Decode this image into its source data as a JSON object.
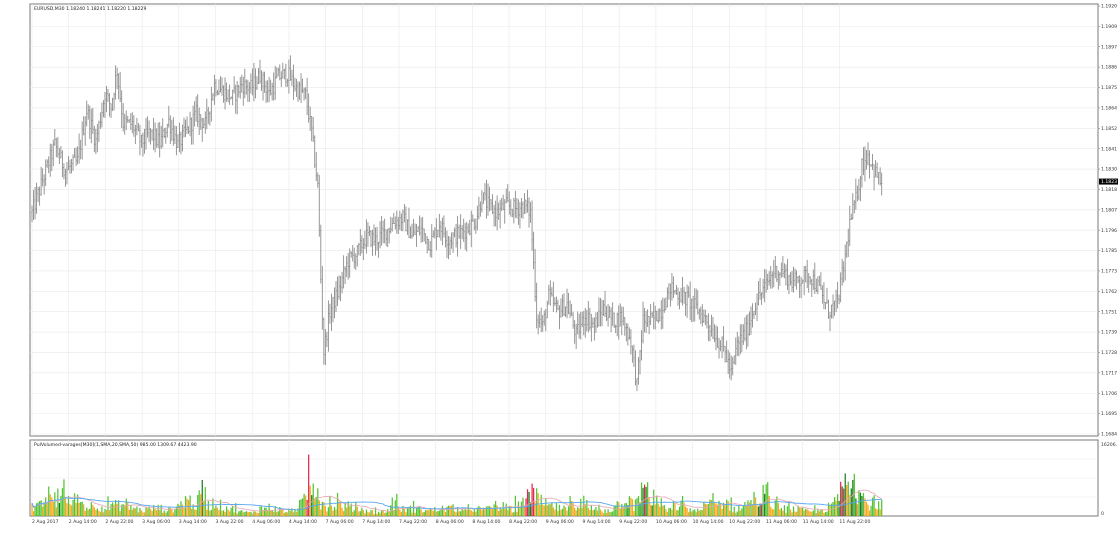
{
  "main_chart": {
    "header": "EURUSD,M30  1.18240 1.18241 1.18220 1.18229",
    "current_price": "1.1823",
    "price_labels": [
      "1.1920",
      "1.1909",
      "1.1897",
      "1.1886",
      "1.1875",
      "1.1864",
      "1.1852",
      "1.1841",
      "1.1830",
      "1.1818",
      "1.1807",
      "1.1796",
      "1.1785",
      "1.1773",
      "1.1762",
      "1.1751",
      "1.1739",
      "1.1728",
      "1.1717",
      "1.1706",
      "1.1695",
      "1.1684"
    ]
  },
  "volume_panel": {
    "header": "PulVolumed-varages[M30](1,SMA,20,SMA,50) 985.00 1309.67 4423.90",
    "scale_max": "16206.",
    "scale_min": "0"
  },
  "time_axis": {
    "labels": [
      "2 Aug 2017",
      "2 Aug 14:00",
      "2 Aug 22:00",
      "3 Aug 06:00",
      "3 Aug 14:00",
      "3 Aug 22:00",
      "4 Aug 06:00",
      "4 Aug 14:00",
      "7 Aug 06:00",
      "7 Aug 14:00",
      "7 Aug 22:00",
      "8 Aug 06:00",
      "8 Aug 14:00",
      "8 Aug 22:00",
      "9 Aug 06:00",
      "9 Aug 14:00",
      "9 Aug 22:00",
      "10 Aug 06:00",
      "10 Aug 14:00",
      "10 Aug 22:00",
      "11 Aug 06:00",
      "11 Aug 14:00",
      "11 Aug 22:00"
    ]
  },
  "colors": {
    "bars": "#8c8c8c",
    "grid": "#e9e9e9",
    "border": "#7a7a7a",
    "volume_bull": "#54c434",
    "volume_bull_dark": "#1e7e1e",
    "volume_bear": "#e02a52",
    "volume_neutral": "#f7a81b",
    "ma_fast": "#e8a6b2",
    "ma_slow": "#58a6f2",
    "price_tag_bg": "#000000"
  },
  "chart_data": {
    "type": "line",
    "price_path": [
      [
        0,
        1.1806
      ],
      [
        8,
        1.1826
      ],
      [
        15,
        1.1843
      ],
      [
        22,
        1.1829
      ],
      [
        30,
        1.1834
      ],
      [
        36,
        1.1862
      ],
      [
        42,
        1.1845
      ],
      [
        48,
        1.1871
      ],
      [
        52,
        1.1864
      ],
      [
        56,
        1.1884
      ],
      [
        60,
        1.1855
      ],
      [
        66,
        1.1854
      ],
      [
        72,
        1.1844
      ],
      [
        78,
        1.185
      ],
      [
        84,
        1.1844
      ],
      [
        90,
        1.1856
      ],
      [
        96,
        1.1843
      ],
      [
        102,
        1.1851
      ],
      [
        108,
        1.186
      ],
      [
        114,
        1.1854
      ],
      [
        120,
        1.1876
      ],
      [
        126,
        1.1872
      ],
      [
        132,
        1.1869
      ],
      [
        138,
        1.1876
      ],
      [
        144,
        1.1874
      ],
      [
        150,
        1.1881
      ],
      [
        156,
        1.1871
      ],
      [
        162,
        1.188
      ],
      [
        168,
        1.1882
      ],
      [
        174,
        1.1874
      ],
      [
        180,
        1.187
      ],
      [
        184,
        1.185
      ],
      [
        188,
        1.182
      ],
      [
        190,
        1.177
      ],
      [
        192,
        1.173
      ],
      [
        196,
        1.1752
      ],
      [
        202,
        1.1764
      ],
      [
        208,
        1.178
      ],
      [
        214,
        1.1784
      ],
      [
        220,
        1.1793
      ],
      [
        226,
        1.1791
      ],
      [
        232,
        1.1795
      ],
      [
        238,
        1.1801
      ],
      [
        244,
        1.1803
      ],
      [
        250,
        1.1793
      ],
      [
        256,
        1.1797
      ],
      [
        262,
        1.1789
      ],
      [
        268,
        1.18
      ],
      [
        274,
        1.1791
      ],
      [
        280,
        1.1794
      ],
      [
        286,
        1.1797
      ],
      [
        292,
        1.1802
      ],
      [
        296,
        1.1815
      ],
      [
        300,
        1.181
      ],
      [
        306,
        1.1806
      ],
      [
        312,
        1.181
      ],
      [
        318,
        1.1808
      ],
      [
        324,
        1.181
      ],
      [
        328,
        1.1806
      ],
      [
        332,
        1.175
      ],
      [
        336,
        1.1744
      ],
      [
        340,
        1.176
      ],
      [
        346,
        1.1752
      ],
      [
        352,
        1.1756
      ],
      [
        358,
        1.1739
      ],
      [
        364,
        1.175
      ],
      [
        370,
        1.1744
      ],
      [
        376,
        1.1754
      ],
      [
        382,
        1.1747
      ],
      [
        388,
        1.1749
      ],
      [
        394,
        1.1736
      ],
      [
        398,
        1.1712
      ],
      [
        402,
        1.1747
      ],
      [
        408,
        1.1747
      ],
      [
        414,
        1.1753
      ],
      [
        420,
        1.1765
      ],
      [
        426,
        1.1761
      ],
      [
        432,
        1.1758
      ],
      [
        438,
        1.1753
      ],
      [
        444,
        1.1747
      ],
      [
        450,
        1.1738
      ],
      [
        456,
        1.173
      ],
      [
        460,
        1.1718
      ],
      [
        464,
        1.1734
      ],
      [
        470,
        1.1741
      ],
      [
        476,
        1.1757
      ],
      [
        482,
        1.1765
      ],
      [
        488,
        1.1774
      ],
      [
        494,
        1.1774
      ],
      [
        500,
        1.1768
      ],
      [
        506,
        1.177
      ],
      [
        512,
        1.1772
      ],
      [
        518,
        1.1764
      ],
      [
        524,
        1.1752
      ],
      [
        530,
        1.1757
      ],
      [
        534,
        1.1776
      ],
      [
        538,
        1.18
      ],
      [
        542,
        1.1813
      ],
      [
        546,
        1.1832
      ],
      [
        550,
        1.1838
      ],
      [
        554,
        1.1829
      ],
      [
        558,
        1.1823
      ]
    ],
    "volume_path": [
      [
        0,
        0.11
      ],
      [
        6,
        0.17
      ],
      [
        10,
        0.35
      ],
      [
        14,
        0.22
      ],
      [
        18,
        0.38
      ],
      [
        24,
        0.22
      ],
      [
        30,
        0.28
      ],
      [
        36,
        0.14
      ],
      [
        42,
        0.19
      ],
      [
        48,
        0.12
      ],
      [
        54,
        0.17
      ],
      [
        60,
        0.18
      ],
      [
        66,
        0.14
      ],
      [
        72,
        0.09
      ],
      [
        78,
        0.12
      ],
      [
        84,
        0.13
      ],
      [
        90,
        0.09
      ],
      [
        96,
        0.16
      ],
      [
        102,
        0.28
      ],
      [
        108,
        0.17
      ],
      [
        112,
        0.38
      ],
      [
        116,
        0.17
      ],
      [
        120,
        0.22
      ],
      [
        126,
        0.15
      ],
      [
        132,
        0.11
      ],
      [
        138,
        0.07
      ],
      [
        144,
        0.05
      ],
      [
        150,
        0.12
      ],
      [
        156,
        0.14
      ],
      [
        162,
        0.11
      ],
      [
        168,
        0.07
      ],
      [
        174,
        0.13
      ],
      [
        180,
        0.26
      ],
      [
        182,
        0.6
      ],
      [
        186,
        0.34
      ],
      [
        190,
        0.22
      ],
      [
        196,
        0.15
      ],
      [
        202,
        0.19
      ],
      [
        208,
        0.13
      ],
      [
        214,
        0.14
      ],
      [
        220,
        0.07
      ],
      [
        226,
        0.07
      ],
      [
        232,
        0.06
      ],
      [
        238,
        0.18
      ],
      [
        244,
        0.11
      ],
      [
        250,
        0.12
      ],
      [
        256,
        0.1
      ],
      [
        262,
        0.09
      ],
      [
        268,
        0.11
      ],
      [
        274,
        0.13
      ],
      [
        280,
        0.12
      ],
      [
        286,
        0.07
      ],
      [
        292,
        0.13
      ],
      [
        298,
        0.09
      ],
      [
        304,
        0.17
      ],
      [
        310,
        0.15
      ],
      [
        316,
        0.1
      ],
      [
        322,
        0.21
      ],
      [
        328,
        0.42
      ],
      [
        334,
        0.24
      ],
      [
        340,
        0.16
      ],
      [
        346,
        0.14
      ],
      [
        352,
        0.1
      ],
      [
        358,
        0.21
      ],
      [
        364,
        0.14
      ],
      [
        370,
        0.11
      ],
      [
        376,
        0.08
      ],
      [
        382,
        0.12
      ],
      [
        388,
        0.25
      ],
      [
        392,
        0.33
      ],
      [
        396,
        0.15
      ],
      [
        402,
        0.46
      ],
      [
        408,
        0.31
      ],
      [
        414,
        0.14
      ],
      [
        420,
        0.09
      ],
      [
        426,
        0.19
      ],
      [
        432,
        0.11
      ],
      [
        438,
        0.08
      ],
      [
        444,
        0.19
      ],
      [
        450,
        0.19
      ],
      [
        456,
        0.23
      ],
      [
        462,
        0.1
      ],
      [
        468,
        0.16
      ],
      [
        474,
        0.26
      ],
      [
        480,
        0.36
      ],
      [
        486,
        0.21
      ],
      [
        492,
        0.13
      ],
      [
        498,
        0.11
      ],
      [
        504,
        0.11
      ],
      [
        510,
        0.07
      ],
      [
        516,
        0.08
      ],
      [
        522,
        0.11
      ],
      [
        528,
        0.21
      ],
      [
        534,
        0.48
      ],
      [
        538,
        0.68
      ],
      [
        542,
        0.4
      ],
      [
        546,
        0.34
      ],
      [
        550,
        0.19
      ],
      [
        556,
        0.2
      ]
    ]
  }
}
